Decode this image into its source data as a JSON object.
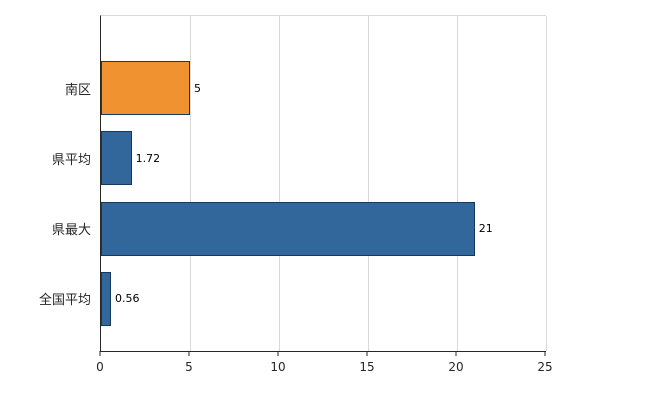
{
  "chart_data": {
    "type": "bar",
    "orientation": "horizontal",
    "categories": [
      "南区",
      "県平均",
      "県最大",
      "全国平均"
    ],
    "values": [
      5,
      1.72,
      21,
      0.56
    ],
    "value_labels": [
      "5",
      "1.72",
      "21",
      "0.56"
    ],
    "series": [
      {
        "name": "",
        "values": [
          5,
          1.72,
          21,
          0.56
        ]
      }
    ],
    "bar_colors": [
      "#f0922f",
      "#31679b",
      "#31679b",
      "#31679b"
    ],
    "bar_border_color": "#17375d",
    "xlim": [
      0,
      25
    ],
    "xticks": [
      0,
      5,
      10,
      15,
      20,
      25
    ],
    "grid": true,
    "gridline_color": "#d9d9d9",
    "axis_color": "#262626",
    "legend": "none",
    "background_color": "#ffffff"
  }
}
